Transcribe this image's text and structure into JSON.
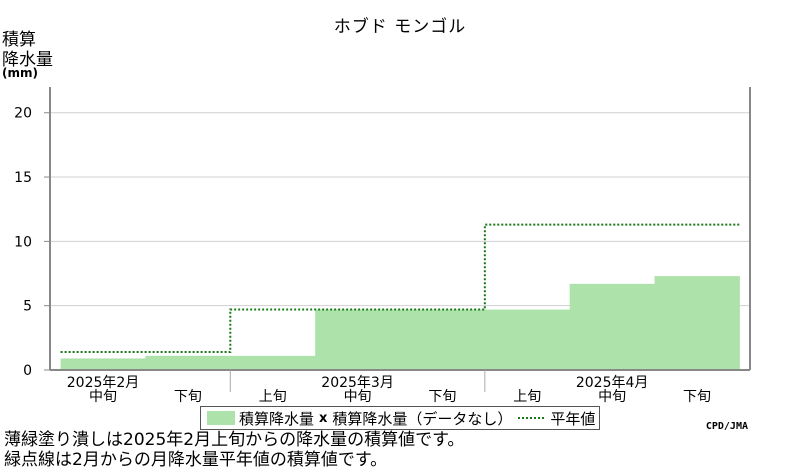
{
  "chart_data": {
    "type": "area",
    "title": "ホブド モンゴル",
    "ylabel_lines": [
      "積算",
      "降水量"
    ],
    "yunit": "(mm)",
    "ylim": [
      0,
      22
    ],
    "yticks": [
      0,
      5,
      10,
      15,
      20
    ],
    "ytick_labels": [
      "0",
      "5",
      "10",
      "15",
      "20"
    ],
    "grid": true,
    "periods": [
      "2025年2月中旬",
      "2025年2月下旬",
      "2025年3月上旬",
      "2025年3月中旬",
      "2025年3月下旬",
      "2025年4月上旬",
      "2025年4月中旬",
      "2025年4月下旬"
    ],
    "xticks": [
      {
        "month": "2025年2月",
        "dekad": "中旬"
      },
      {
        "month": "",
        "dekad": "下旬"
      },
      {
        "month": "",
        "dekad": "上旬"
      },
      {
        "month": "2025年3月",
        "dekad": "中旬"
      },
      {
        "month": "",
        "dekad": "下旬"
      },
      {
        "month": "",
        "dekad": "上旬"
      },
      {
        "month": "2025年4月",
        "dekad": "中旬"
      },
      {
        "month": "",
        "dekad": "下旬"
      }
    ],
    "series": [
      {
        "name": "積算降水量",
        "style": "filled",
        "color": "#ade3ab",
        "values": [
          0.9,
          1.1,
          1.1,
          4.7,
          4.7,
          4.7,
          6.7,
          7.3
        ]
      },
      {
        "name": "積算降水量（データなし）",
        "style": "marker",
        "color": "#000000",
        "values": [
          null,
          null,
          null,
          null,
          null,
          null,
          null,
          null
        ]
      },
      {
        "name": "平年値",
        "style": "dotted-step",
        "color": "#1a7a1a",
        "months": [
          "2025年2月",
          "2025年3月",
          "2025年4月"
        ],
        "values": [
          1.4,
          4.7,
          11.3
        ]
      }
    ],
    "legend": {
      "filled": "積算降水量",
      "nodata_mark": "x",
      "nodata": "積算降水量（データなし）",
      "normal": "平年値"
    }
  },
  "credit": "CPD/JMA",
  "notes": [
    "薄緑塗り潰しは2025年2月上旬からの降水量の積算値です。",
    "緑点線は2月からの月降水量平年値の積算値です。"
  ]
}
